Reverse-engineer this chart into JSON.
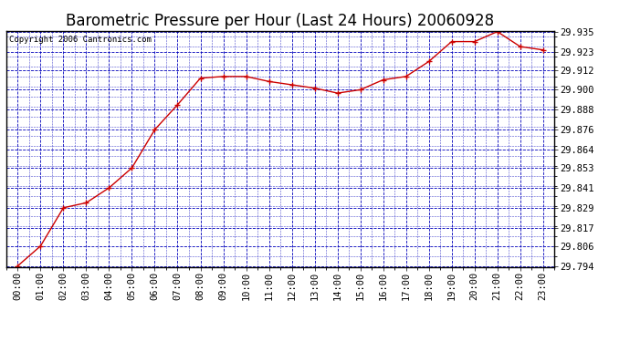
{
  "title": "Barometric Pressure per Hour (Last 24 Hours) 20060928",
  "copyright": "Copyright 2006 Cantronics.com",
  "x_labels": [
    "00:00",
    "01:00",
    "02:00",
    "03:00",
    "04:00",
    "05:00",
    "06:00",
    "07:00",
    "08:00",
    "09:00",
    "10:00",
    "11:00",
    "12:00",
    "13:00",
    "14:00",
    "15:00",
    "16:00",
    "17:00",
    "18:00",
    "19:00",
    "20:00",
    "21:00",
    "22:00",
    "23:00"
  ],
  "y_values": [
    29.794,
    29.806,
    29.829,
    29.832,
    29.841,
    29.853,
    29.876,
    29.891,
    29.907,
    29.908,
    29.908,
    29.905,
    29.903,
    29.901,
    29.898,
    29.9,
    29.906,
    29.908,
    29.917,
    29.929,
    29.929,
    29.935,
    29.926,
    29.924
  ],
  "ylim_min": 29.794,
  "ylim_max": 29.935,
  "y_ticks": [
    29.794,
    29.806,
    29.817,
    29.829,
    29.841,
    29.853,
    29.864,
    29.876,
    29.888,
    29.9,
    29.912,
    29.923,
    29.935
  ],
  "line_color": "#cc0000",
  "marker_color": "#cc0000",
  "background_color": "#ffffff",
  "plot_bg_color": "#ffffff",
  "grid_color": "#0000bb",
  "title_color": "#000000",
  "title_fontsize": 12,
  "tick_fontsize": 7.5,
  "copyright_fontsize": 6.5,
  "border_color": "#000000"
}
